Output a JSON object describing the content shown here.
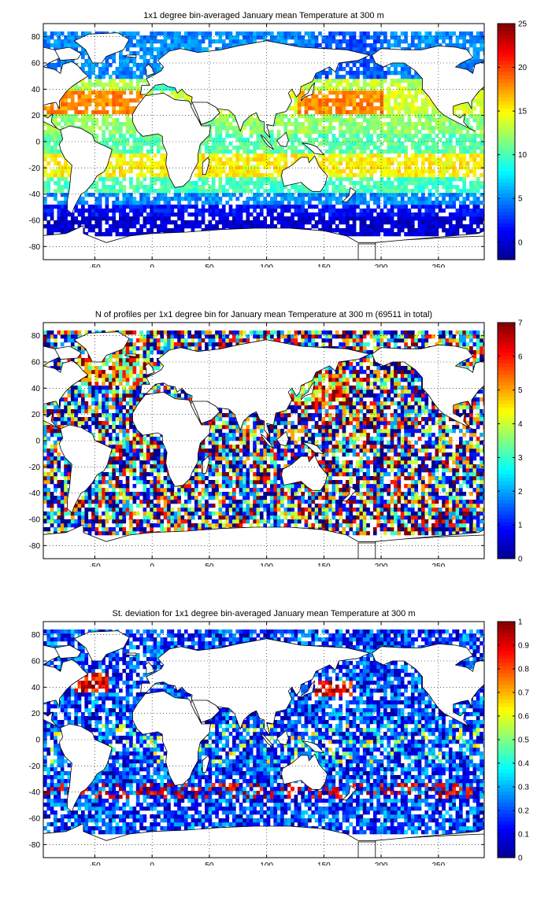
{
  "colormap": [
    "#00008f",
    "#0000ff",
    "#0080ff",
    "#00ffff",
    "#80ff80",
    "#ffff00",
    "#ff8000",
    "#ff0000",
    "#800000"
  ],
  "chart_data": [
    {
      "type": "heatmap",
      "title": "1x1 degree bin-averaged January mean Temperature at 300 m",
      "xlim": [
        -95,
        290
      ],
      "ylim": [
        -90,
        90
      ],
      "x_ticks": [
        -50,
        0,
        50,
        100,
        150,
        200,
        250
      ],
      "y_ticks": [
        80,
        60,
        40,
        20,
        0,
        -20,
        -40,
        -60,
        -80
      ],
      "grid": true,
      "colorbar": {
        "min": -2,
        "max": 25,
        "ticks": [
          0,
          5,
          10,
          15,
          20,
          25
        ]
      },
      "field": "temperature",
      "regions": [
        {
          "lat_band": [
            30,
            40
          ],
          "value": 18
        },
        {
          "lat_band": [
            15,
            30
          ],
          "value": 17
        },
        {
          "lat_band": [
            0,
            15
          ],
          "value": 11
        },
        {
          "lat_band": [
            -30,
            -15
          ],
          "value": 14
        },
        {
          "lat_band": [
            -45,
            -30
          ],
          "value": 9
        },
        {
          "lat_band": [
            -55,
            -45
          ],
          "value": 4
        },
        {
          "lat_band": [
            -72,
            -55
          ],
          "value": 0
        }
      ]
    },
    {
      "type": "heatmap",
      "title": "N of profiles per 1x1 degree bin for January mean Temperature at 300 m (69511 in total)",
      "xlim": [
        -95,
        290
      ],
      "ylim": [
        -90,
        90
      ],
      "x_ticks": [
        -50,
        0,
        50,
        100,
        150,
        200,
        250
      ],
      "y_ticks": [
        80,
        60,
        40,
        20,
        0,
        -20,
        -40,
        -60,
        -80
      ],
      "grid": true,
      "colorbar": {
        "min": 0,
        "max": 7,
        "ticks": [
          0,
          1,
          2,
          3,
          4,
          5,
          6,
          7
        ]
      },
      "field": "count"
    },
    {
      "type": "heatmap",
      "title": "St. deviation for 1x1 degree bin-averaged January mean Temperature at 300 m",
      "xlim": [
        -95,
        290
      ],
      "ylim": [
        -90,
        90
      ],
      "x_ticks": [
        -50,
        0,
        50,
        100,
        150,
        200,
        250
      ],
      "y_ticks": [
        80,
        60,
        40,
        20,
        0,
        -20,
        -40,
        -60,
        -80
      ],
      "grid": true,
      "colorbar": {
        "min": 0,
        "max": 1,
        "ticks": [
          0,
          0.1,
          0.2,
          0.3,
          0.4,
          0.5,
          0.6,
          0.7,
          0.8,
          0.9,
          1
        ]
      },
      "field": "stdev"
    }
  ]
}
